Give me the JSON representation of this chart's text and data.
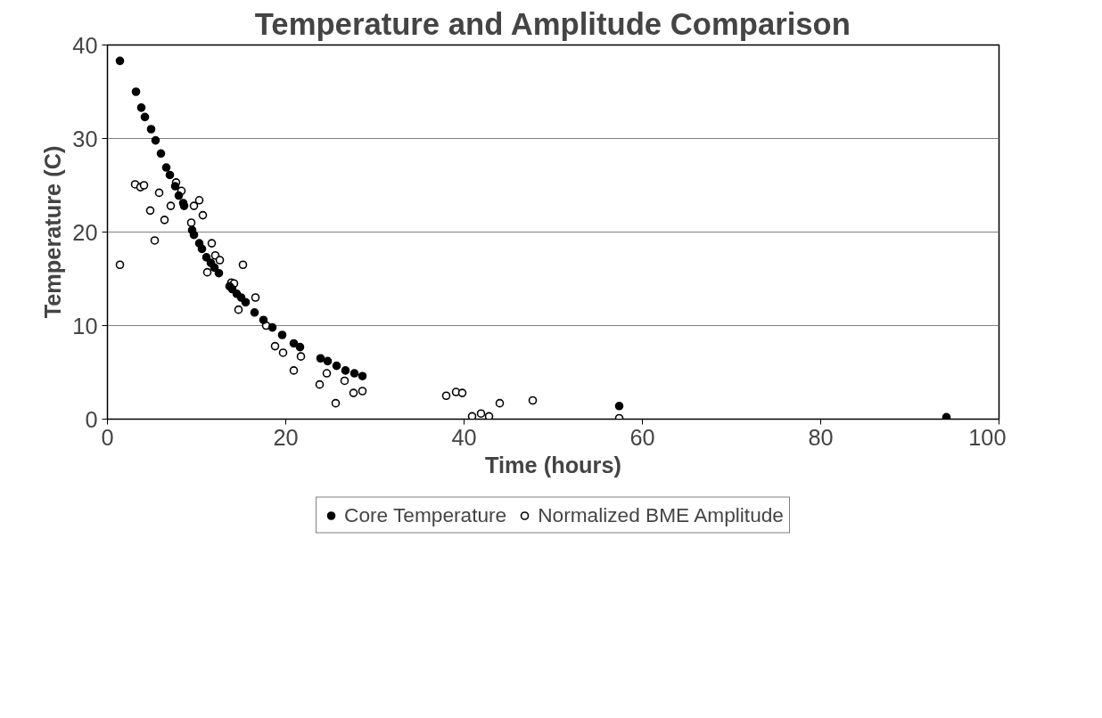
{
  "chart_data": {
    "type": "scatter",
    "title": "Temperature and Amplitude Comparison",
    "xlabel": "Time (hours)",
    "ylabel": "Temperature (C)",
    "xlim": [
      0,
      100
    ],
    "xticks": [
      0,
      20,
      40,
      60,
      80,
      100
    ],
    "ylim": [
      0,
      40
    ],
    "yticks": [
      0,
      10,
      20,
      30,
      40
    ],
    "grid": "y",
    "legend": "bottom",
    "marker": "circle",
    "series": [
      {
        "name": "Core Temperature",
        "color": "#000000",
        "x": [
          1.4,
          3.2,
          3.8,
          4.2,
          4.9,
          5.4,
          6.0,
          6.6,
          7.0,
          7.6,
          8.0,
          8.5,
          8.6,
          9.5,
          9.7,
          10.3,
          10.6,
          11.1,
          11.6,
          12.0,
          12.5,
          13.7,
          14.0,
          14.5,
          15.0,
          15.5,
          16.5,
          17.5,
          18.5,
          19.6,
          20.9,
          21.6,
          23.9,
          24.7,
          25.7,
          26.7,
          27.7,
          28.6,
          57.4,
          94.1
        ],
        "values": [
          38.3,
          35.0,
          33.3,
          32.3,
          31.0,
          29.8,
          28.4,
          26.9,
          26.1,
          24.9,
          23.9,
          23.1,
          22.8,
          20.2,
          19.7,
          18.8,
          18.2,
          17.3,
          16.7,
          16.2,
          15.6,
          14.2,
          13.9,
          13.4,
          13.0,
          12.5,
          11.4,
          10.6,
          9.8,
          9.0,
          8.1,
          7.7,
          6.5,
          6.2,
          5.7,
          5.2,
          4.9,
          4.6,
          1.4,
          0.2
        ]
      },
      {
        "name": "Normalized BME Amplitude",
        "color": "#ffffff",
        "x": [
          1.4,
          3.1,
          3.7,
          4.1,
          4.8,
          5.3,
          5.8,
          6.4,
          7.1,
          7.7,
          8.3,
          9.4,
          9.7,
          10.3,
          10.7,
          11.2,
          11.7,
          12.1,
          12.6,
          13.9,
          14.2,
          14.7,
          15.2,
          16.6,
          17.8,
          18.8,
          19.7,
          20.9,
          21.7,
          23.8,
          24.6,
          25.6,
          26.6,
          27.6,
          28.6,
          38.0,
          39.1,
          39.8,
          40.9,
          41.9,
          42.8,
          44.0,
          47.7,
          57.4
        ],
        "values": [
          16.5,
          25.1,
          24.8,
          25.0,
          22.3,
          19.1,
          24.2,
          21.3,
          22.8,
          25.3,
          24.4,
          21.0,
          22.8,
          23.4,
          21.8,
          15.7,
          18.8,
          17.5,
          17.0,
          14.6,
          14.5,
          11.7,
          16.5,
          13.0,
          10.0,
          7.8,
          7.1,
          5.2,
          6.7,
          3.7,
          4.9,
          1.7,
          4.1,
          2.8,
          3.0,
          2.5,
          2.9,
          2.8,
          0.3,
          0.6,
          0.3,
          1.7,
          2.0,
          0.1
        ]
      }
    ]
  }
}
